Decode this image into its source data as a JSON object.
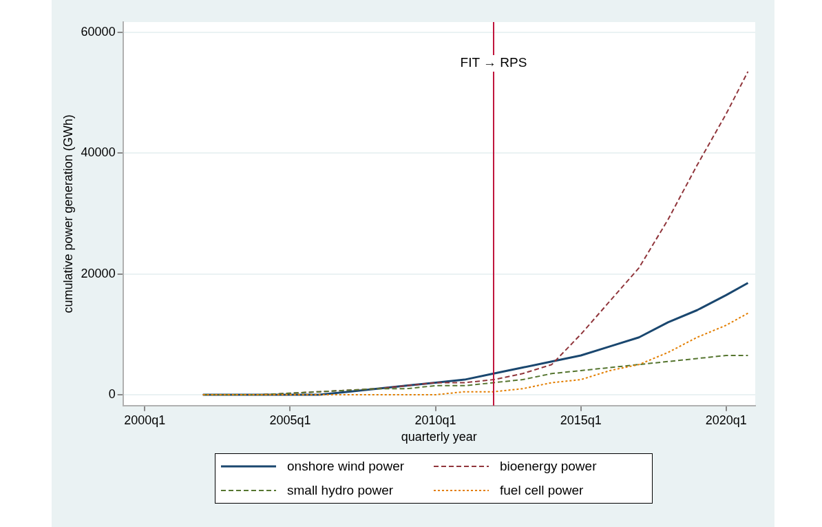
{
  "chart_data": {
    "type": "line",
    "xlabel": "quarterly year",
    "ylabel": "cumulative power generation (GWh)",
    "x": [
      "2002-01",
      "2004-01",
      "2006-01",
      "2008-01",
      "2009-01",
      "2010-01",
      "2011-01",
      "2012-01",
      "2013-01",
      "2014-01",
      "2015-01",
      "2016-01",
      "2017-01",
      "2018-01",
      "2019-01",
      "2020-01",
      "2020-10"
    ],
    "series": [
      {
        "name": "onshore wind power",
        "color": "#1a476f",
        "line_style": "solid",
        "values": [
          0,
          0,
          0,
          1000,
          1500,
          2000,
          2500,
          3500,
          4500,
          5500,
          6500,
          8000,
          9500,
          12000,
          14000,
          16500,
          18500
        ]
      },
      {
        "name": "bioenergy power",
        "color": "#90353b",
        "line_style": "dashed",
        "values": [
          0,
          0,
          500,
          1000,
          1500,
          2000,
          2000,
          2500,
          3500,
          5000,
          10000,
          15500,
          21000,
          29000,
          38000,
          46500,
          53500
        ]
      },
      {
        "name": "small hydro power",
        "color": "#55752f",
        "line_style": "dashed",
        "values": [
          0,
          0,
          500,
          1000,
          1000,
          1500,
          1500,
          2000,
          2500,
          3500,
          4000,
          4500,
          5000,
          5500,
          6000,
          6500,
          6500
        ]
      },
      {
        "name": "fuel cell power",
        "color": "#e37e00",
        "line_style": "dotted",
        "values": [
          0,
          0,
          0,
          0,
          0,
          0,
          500,
          500,
          1000,
          2000,
          2500,
          4000,
          5000,
          7000,
          9500,
          11500,
          13500
        ]
      }
    ],
    "xlim": [
      "1999-04",
      "2021-01"
    ],
    "ylim": [
      -1800,
      61700
    ],
    "xticks": [
      {
        "value": "2000-01",
        "label": "2000q1"
      },
      {
        "value": "2005-01",
        "label": "2005q1"
      },
      {
        "value": "2010-01",
        "label": "2010q1"
      },
      {
        "value": "2015-01",
        "label": "2015q1"
      },
      {
        "value": "2020-01",
        "label": "2020q1"
      }
    ],
    "yticks": [
      0,
      20000,
      40000,
      60000
    ],
    "ref_lines": [
      {
        "axis": "x",
        "value": "2012-01",
        "label": "FIT → RPS",
        "color": "#c0143c"
      }
    ],
    "grid": "y",
    "legend": "bottom",
    "marker": "none"
  }
}
